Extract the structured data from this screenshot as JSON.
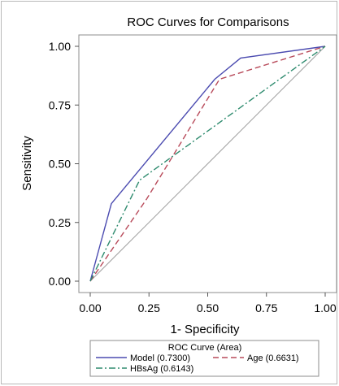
{
  "chart_data": {
    "type": "line",
    "title": "ROC Curves for Comparisons",
    "xlabel": "1- Specificity",
    "ylabel": "Sensitivity",
    "xlim": [
      0,
      1
    ],
    "ylim": [
      0,
      1
    ],
    "xticks": [
      "0.00",
      "0.25",
      "0.50",
      "0.75",
      "1.00"
    ],
    "yticks": [
      "0.00",
      "0.25",
      "0.50",
      "0.75",
      "1.00"
    ],
    "grid": false,
    "legend": {
      "title": "ROC Curve (Area)",
      "placement": "bottom"
    },
    "series": [
      {
        "name": "Model (0.7300)",
        "color": "#4b4bb0",
        "dash": "solid",
        "x": [
          0.0,
          0.09,
          0.53,
          0.64,
          1.0
        ],
        "y": [
          0.0,
          0.33,
          0.86,
          0.95,
          1.0
        ]
      },
      {
        "name": "Age (0.6631)",
        "color": "#b84a5a",
        "dash": "dash",
        "x": [
          0.0,
          0.24,
          0.55,
          1.0
        ],
        "y": [
          0.0,
          0.35,
          0.86,
          1.0
        ]
      },
      {
        "name": "HBsAg (0.6143)",
        "color": "#2e8b6e",
        "dash": "dashdot",
        "x": [
          0.0,
          0.21,
          1.0
        ],
        "y": [
          0.0,
          0.43,
          1.0
        ]
      }
    ],
    "reference_line": {
      "x": [
        0,
        1
      ],
      "y": [
        0,
        1
      ],
      "color": "#a0a0a0"
    }
  }
}
